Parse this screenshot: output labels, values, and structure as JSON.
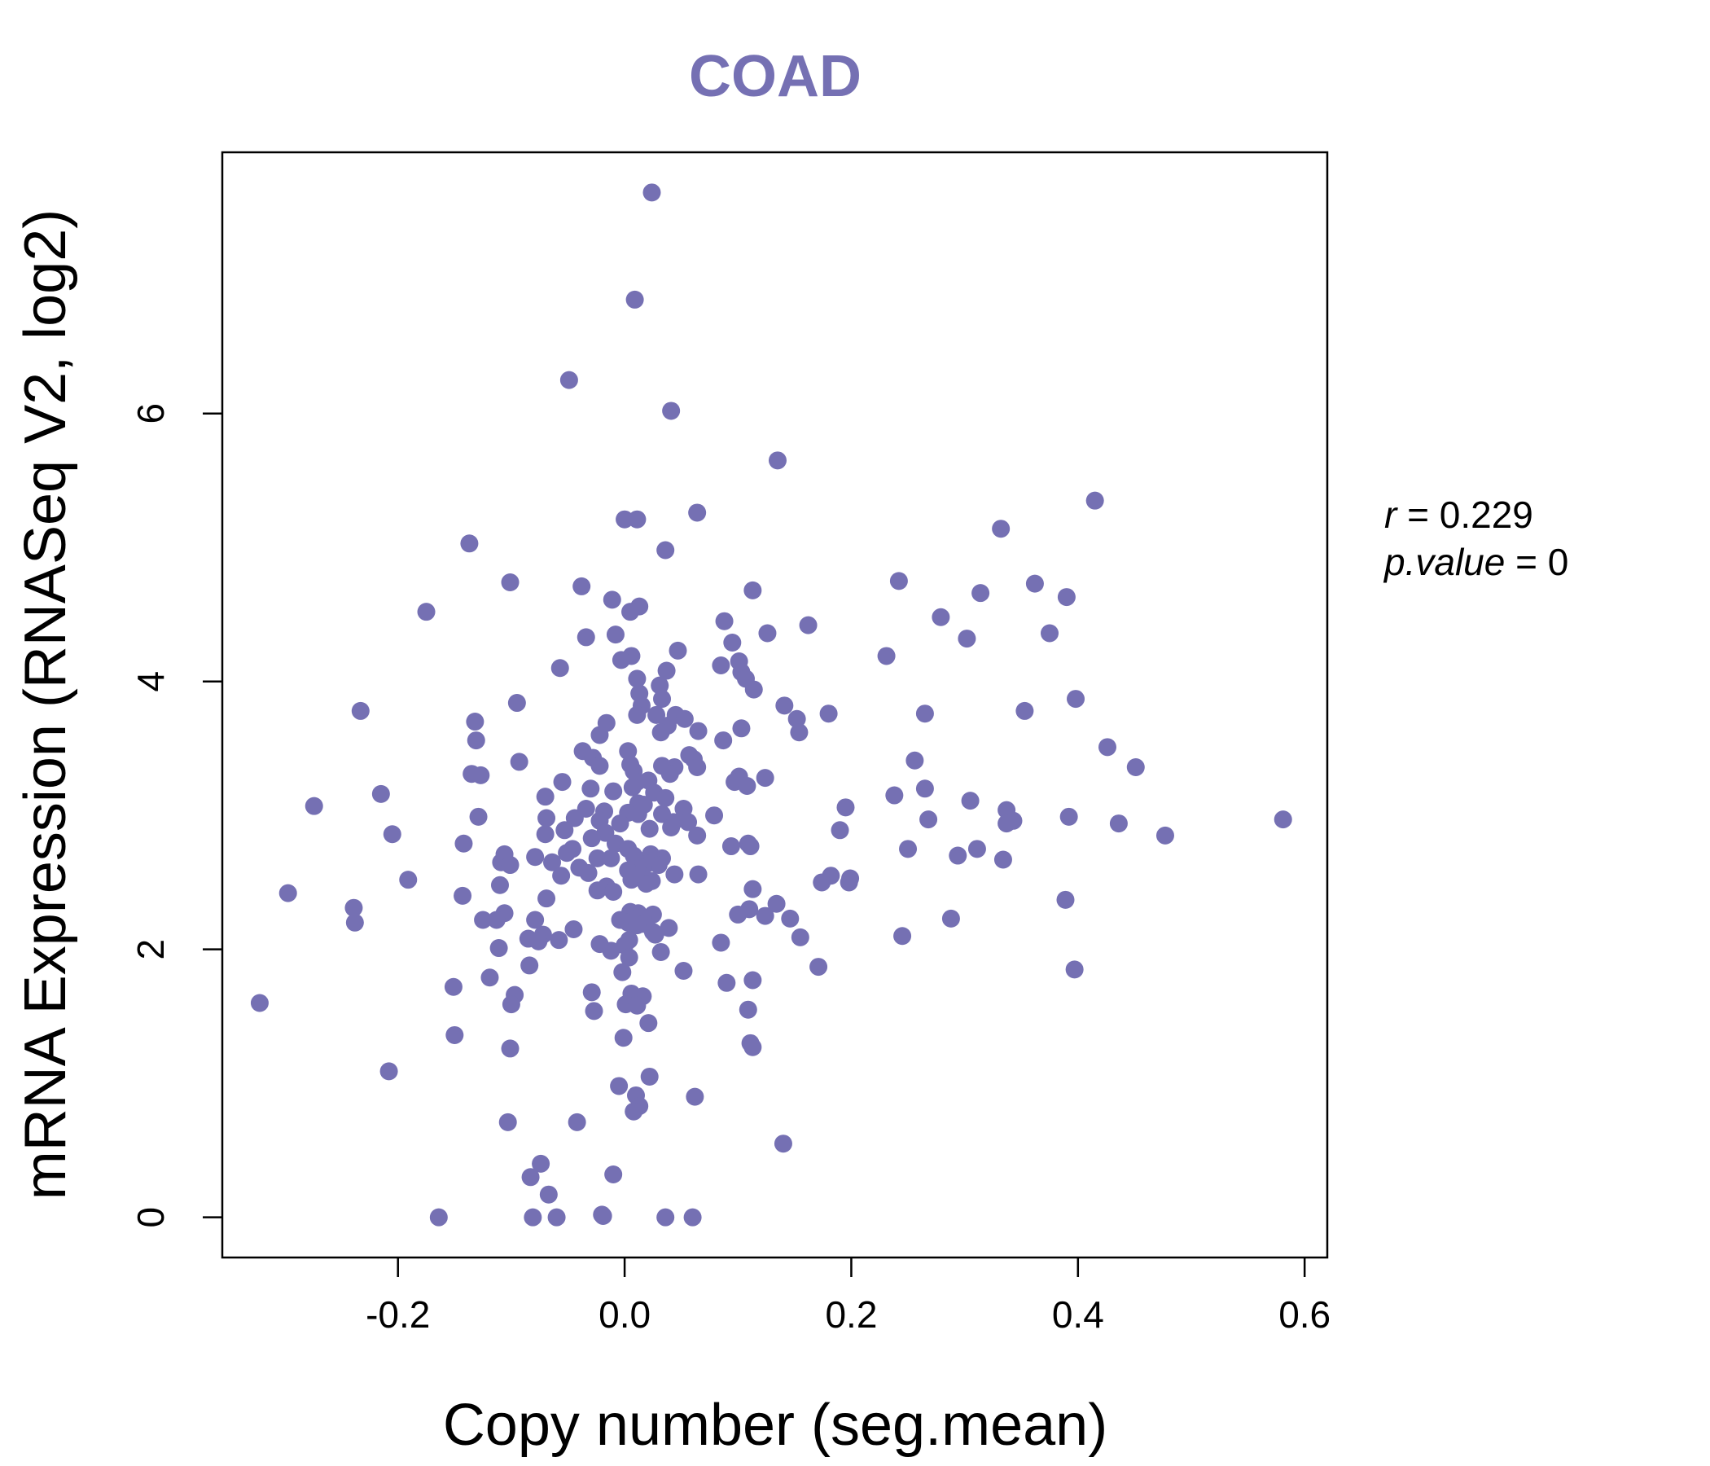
{
  "chart_data": {
    "type": "scatter",
    "title": "COAD",
    "xlabel": "Copy number (seg.mean)",
    "ylabel": "mRNA Expression (RNASeq V2, log2)",
    "xlim": [
      -0.355,
      0.62
    ],
    "ylim": [
      -0.3,
      7.95
    ],
    "x_ticks": [
      -0.2,
      0.0,
      0.2,
      0.4,
      0.6
    ],
    "x_tick_labels": [
      "-0.2",
      "0.0",
      "0.2",
      "0.4",
      "0.6"
    ],
    "y_ticks": [
      0,
      2,
      4,
      6
    ],
    "y_tick_labels": [
      "0",
      "2",
      "4",
      "6"
    ],
    "grid": false,
    "color": "#7570B3",
    "annotations": {
      "r_label": "r",
      "r_value": "0.229",
      "p_label": "p.value",
      "p_value": "0"
    },
    "points": [
      [
        0.024,
        7.65
      ],
      [
        0.009,
        6.85
      ],
      [
        -0.049,
        6.25
      ],
      [
        0.041,
        6.02
      ],
      [
        0.135,
        5.65
      ],
      [
        0.415,
        5.35
      ],
      [
        0.064,
        5.26
      ],
      [
        0.0,
        5.21
      ],
      [
        0.011,
        5.21
      ],
      [
        0.332,
        5.14
      ],
      [
        -0.137,
        5.03
      ],
      [
        0.036,
        4.98
      ],
      [
        -0.101,
        4.74
      ],
      [
        0.242,
        4.75
      ],
      [
        0.362,
        4.73
      ],
      [
        -0.038,
        4.71
      ],
      [
        0.113,
        4.68
      ],
      [
        0.314,
        4.66
      ],
      [
        0.39,
        4.63
      ],
      [
        -0.011,
        4.61
      ],
      [
        0.013,
        4.56
      ],
      [
        0.005,
        4.52
      ],
      [
        -0.175,
        4.52
      ],
      [
        0.088,
        4.45
      ],
      [
        0.279,
        4.48
      ],
      [
        0.162,
        4.42
      ],
      [
        0.126,
        4.36
      ],
      [
        0.375,
        4.36
      ],
      [
        -0.008,
        4.35
      ],
      [
        -0.034,
        4.33
      ],
      [
        0.302,
        4.32
      ],
      [
        0.095,
        4.29
      ],
      [
        0.047,
        4.23
      ],
      [
        0.231,
        4.19
      ],
      [
        0.006,
        4.19
      ],
      [
        -0.003,
        4.16
      ],
      [
        0.101,
        4.15
      ],
      [
        0.085,
        4.12
      ],
      [
        -0.057,
        4.1
      ],
      [
        0.037,
        4.08
      ],
      [
        0.103,
        4.07
      ],
      [
        0.107,
        4.02
      ],
      [
        0.011,
        4.02
      ],
      [
        0.031,
        3.97
      ],
      [
        0.114,
        3.94
      ],
      [
        0.013,
        3.91
      ],
      [
        0.033,
        3.87
      ],
      [
        0.398,
        3.87
      ],
      [
        -0.095,
        3.84
      ],
      [
        0.015,
        3.82
      ],
      [
        0.141,
        3.82
      ],
      [
        0.353,
        3.78
      ],
      [
        -0.233,
        3.78
      ],
      [
        0.011,
        3.75
      ],
      [
        0.028,
        3.75
      ],
      [
        0.045,
        3.75
      ],
      [
        0.265,
        3.76
      ],
      [
        0.18,
        3.76
      ],
      [
        0.053,
        3.72
      ],
      [
        0.152,
        3.72
      ],
      [
        -0.132,
        3.7
      ],
      [
        -0.016,
        3.69
      ],
      [
        0.038,
        3.67
      ],
      [
        0.103,
        3.65
      ],
      [
        0.065,
        3.63
      ],
      [
        0.154,
        3.62
      ],
      [
        0.032,
        3.62
      ],
      [
        -0.022,
        3.6
      ],
      [
        0.087,
        3.56
      ],
      [
        -0.131,
        3.56
      ],
      [
        0.426,
        3.51
      ],
      [
        -0.037,
        3.48
      ],
      [
        0.003,
        3.48
      ],
      [
        0.057,
        3.45
      ],
      [
        -0.028,
        3.43
      ],
      [
        0.061,
        3.42
      ],
      [
        -0.093,
        3.4
      ],
      [
        0.256,
        3.41
      ],
      [
        0.005,
        3.38
      ],
      [
        0.033,
        3.37
      ],
      [
        -0.022,
        3.37
      ],
      [
        0.044,
        3.36
      ],
      [
        0.064,
        3.36
      ],
      [
        0.451,
        3.36
      ],
      [
        0.008,
        3.33
      ],
      [
        0.04,
        3.31
      ],
      [
        -0.135,
        3.31
      ],
      [
        -0.127,
        3.3
      ],
      [
        0.101,
        3.29
      ],
      [
        0.124,
        3.28
      ],
      [
        0.097,
        3.25
      ],
      [
        0.011,
        3.25
      ],
      [
        0.021,
        3.26
      ],
      [
        -0.055,
        3.25
      ],
      [
        0.108,
        3.22
      ],
      [
        0.007,
        3.21
      ],
      [
        0.265,
        3.2
      ],
      [
        -0.03,
        3.2
      ],
      [
        -0.01,
        3.18
      ],
      [
        0.026,
        3.17
      ],
      [
        -0.215,
        3.16
      ],
      [
        0.238,
        3.15
      ],
      [
        0.036,
        3.13
      ],
      [
        -0.07,
        3.14
      ],
      [
        0.305,
        3.11
      ],
      [
        0.012,
        3.09
      ],
      [
        0.017,
        3.08
      ],
      [
        -0.274,
        3.07
      ],
      [
        0.195,
        3.06
      ],
      [
        0.337,
        3.04
      ],
      [
        0.052,
        3.05
      ],
      [
        -0.034,
        3.05
      ],
      [
        -0.018,
        3.03
      ],
      [
        0.003,
        3.02
      ],
      [
        0.012,
        3.01
      ],
      [
        0.033,
        3.01
      ],
      [
        0.079,
        3.0
      ],
      [
        -0.044,
        2.98
      ],
      [
        -0.069,
        2.98
      ],
      [
        -0.129,
        2.99
      ],
      [
        0.392,
        2.99
      ],
      [
        0.581,
        2.97
      ],
      [
        0.268,
        2.97
      ],
      [
        0.343,
        2.96
      ],
      [
        0.337,
        2.94
      ],
      [
        -0.022,
        2.96
      ],
      [
        0.043,
        2.95
      ],
      [
        0.056,
        2.95
      ],
      [
        -0.004,
        2.94
      ],
      [
        0.436,
        2.94
      ],
      [
        0.041,
        2.91
      ],
      [
        0.022,
        2.9
      ],
      [
        -0.053,
        2.89
      ],
      [
        0.19,
        2.89
      ],
      [
        -0.017,
        2.87
      ],
      [
        -0.07,
        2.86
      ],
      [
        -0.205,
        2.86
      ],
      [
        0.477,
        2.85
      ],
      [
        0.064,
        2.85
      ],
      [
        -0.029,
        2.83
      ],
      [
        -0.008,
        2.79
      ],
      [
        0.109,
        2.79
      ],
      [
        0.111,
        2.77
      ],
      [
        -0.142,
        2.79
      ],
      [
        0.094,
        2.77
      ],
      [
        0.25,
        2.75
      ],
      [
        0.311,
        2.75
      ],
      [
        0.003,
        2.75
      ],
      [
        -0.046,
        2.75
      ],
      [
        -0.051,
        2.72
      ],
      [
        -0.106,
        2.71
      ],
      [
        0.023,
        2.71
      ],
      [
        0.008,
        2.7
      ],
      [
        0.294,
        2.7
      ],
      [
        0.033,
        2.68
      ],
      [
        -0.024,
        2.68
      ],
      [
        -0.012,
        2.68
      ],
      [
        -0.079,
        2.69
      ],
      [
        0.334,
        2.67
      ],
      [
        -0.109,
        2.65
      ],
      [
        -0.064,
        2.65
      ],
      [
        0.02,
        2.64
      ],
      [
        -0.101,
        2.63
      ],
      [
        0.03,
        2.63
      ],
      [
        -0.04,
        2.61
      ],
      [
        0.016,
        2.61
      ],
      [
        0.011,
        2.6
      ],
      [
        0.003,
        2.59
      ],
      [
        -0.032,
        2.57
      ],
      [
        -0.056,
        2.55
      ],
      [
        0.065,
        2.56
      ],
      [
        0.044,
        2.56
      ],
      [
        0.182,
        2.55
      ],
      [
        0.199,
        2.53
      ],
      [
        0.006,
        2.52
      ],
      [
        -0.191,
        2.52
      ],
      [
        0.024,
        2.51
      ],
      [
        0.174,
        2.5
      ],
      [
        0.198,
        2.5
      ],
      [
        0.019,
        2.49
      ],
      [
        -0.11,
        2.48
      ],
      [
        -0.016,
        2.47
      ],
      [
        0.113,
        2.45
      ],
      [
        -0.024,
        2.44
      ],
      [
        -0.01,
        2.43
      ],
      [
        -0.297,
        2.42
      ],
      [
        -0.143,
        2.4
      ],
      [
        -0.069,
        2.38
      ],
      [
        0.389,
        2.37
      ],
      [
        0.134,
        2.34
      ],
      [
        -0.239,
        2.31
      ],
      [
        0.11,
        2.3
      ],
      [
        0.005,
        2.28
      ],
      [
        0.012,
        2.27
      ],
      [
        0.025,
        2.26
      ],
      [
        -0.106,
        2.27
      ],
      [
        0.1,
        2.26
      ],
      [
        0.124,
        2.25
      ],
      [
        0.016,
        2.24
      ],
      [
        0.005,
        2.23
      ],
      [
        0.146,
        2.23
      ],
      [
        0.288,
        2.23
      ],
      [
        -0.004,
        2.22
      ],
      [
        -0.125,
        2.22
      ],
      [
        0.003,
        2.2
      ],
      [
        -0.113,
        2.22
      ],
      [
        -0.079,
        2.22
      ],
      [
        -0.238,
        2.2
      ],
      [
        0.017,
        2.19
      ],
      [
        0.011,
        2.18
      ],
      [
        0.039,
        2.16
      ],
      [
        -0.045,
        2.15
      ],
      [
        0.025,
        2.13
      ],
      [
        0.027,
        2.11
      ],
      [
        -0.072,
        2.11
      ],
      [
        0.155,
        2.09
      ],
      [
        0.245,
        2.1
      ],
      [
        -0.085,
        2.08
      ],
      [
        0.004,
        2.07
      ],
      [
        -0.058,
        2.07
      ],
      [
        -0.076,
        2.06
      ],
      [
        0.085,
        2.05
      ],
      [
        -0.022,
        2.04
      ],
      [
        0.0,
        2.03
      ],
      [
        -0.012,
        1.99
      ],
      [
        -0.111,
        2.01
      ],
      [
        0.032,
        1.98
      ],
      [
        0.004,
        1.94
      ],
      [
        -0.084,
        1.88
      ],
      [
        0.171,
        1.87
      ],
      [
        0.052,
        1.84
      ],
      [
        0.397,
        1.85
      ],
      [
        -0.002,
        1.83
      ],
      [
        -0.119,
        1.79
      ],
      [
        0.113,
        1.77
      ],
      [
        0.09,
        1.75
      ],
      [
        -0.151,
        1.72
      ],
      [
        -0.029,
        1.68
      ],
      [
        0.006,
        1.67
      ],
      [
        0.016,
        1.65
      ],
      [
        -0.097,
        1.66
      ],
      [
        -0.1,
        1.59
      ],
      [
        -0.322,
        1.6
      ],
      [
        0.001,
        1.59
      ],
      [
        0.011,
        1.58
      ],
      [
        0.109,
        1.55
      ],
      [
        -0.027,
        1.54
      ],
      [
        0.021,
        1.45
      ],
      [
        -0.15,
        1.36
      ],
      [
        -0.001,
        1.34
      ],
      [
        0.111,
        1.3
      ],
      [
        0.113,
        1.27
      ],
      [
        -0.101,
        1.26
      ],
      [
        -0.208,
        1.09
      ],
      [
        0.022,
        1.05
      ],
      [
        -0.005,
        0.98
      ],
      [
        0.01,
        0.91
      ],
      [
        0.062,
        0.9
      ],
      [
        0.013,
        0.83
      ],
      [
        0.008,
        0.79
      ],
      [
        -0.103,
        0.71
      ],
      [
        -0.042,
        0.71
      ],
      [
        0.14,
        0.55
      ],
      [
        -0.074,
        0.4
      ],
      [
        -0.01,
        0.32
      ],
      [
        -0.083,
        0.3
      ],
      [
        -0.067,
        0.17
      ],
      [
        -0.02,
        0.02
      ],
      [
        -0.019,
        0.01
      ],
      [
        -0.081,
        0.0
      ],
      [
        -0.06,
        0.0
      ],
      [
        -0.164,
        0.0
      ],
      [
        0.036,
        0.0
      ],
      [
        0.06,
        0.0
      ]
    ]
  }
}
